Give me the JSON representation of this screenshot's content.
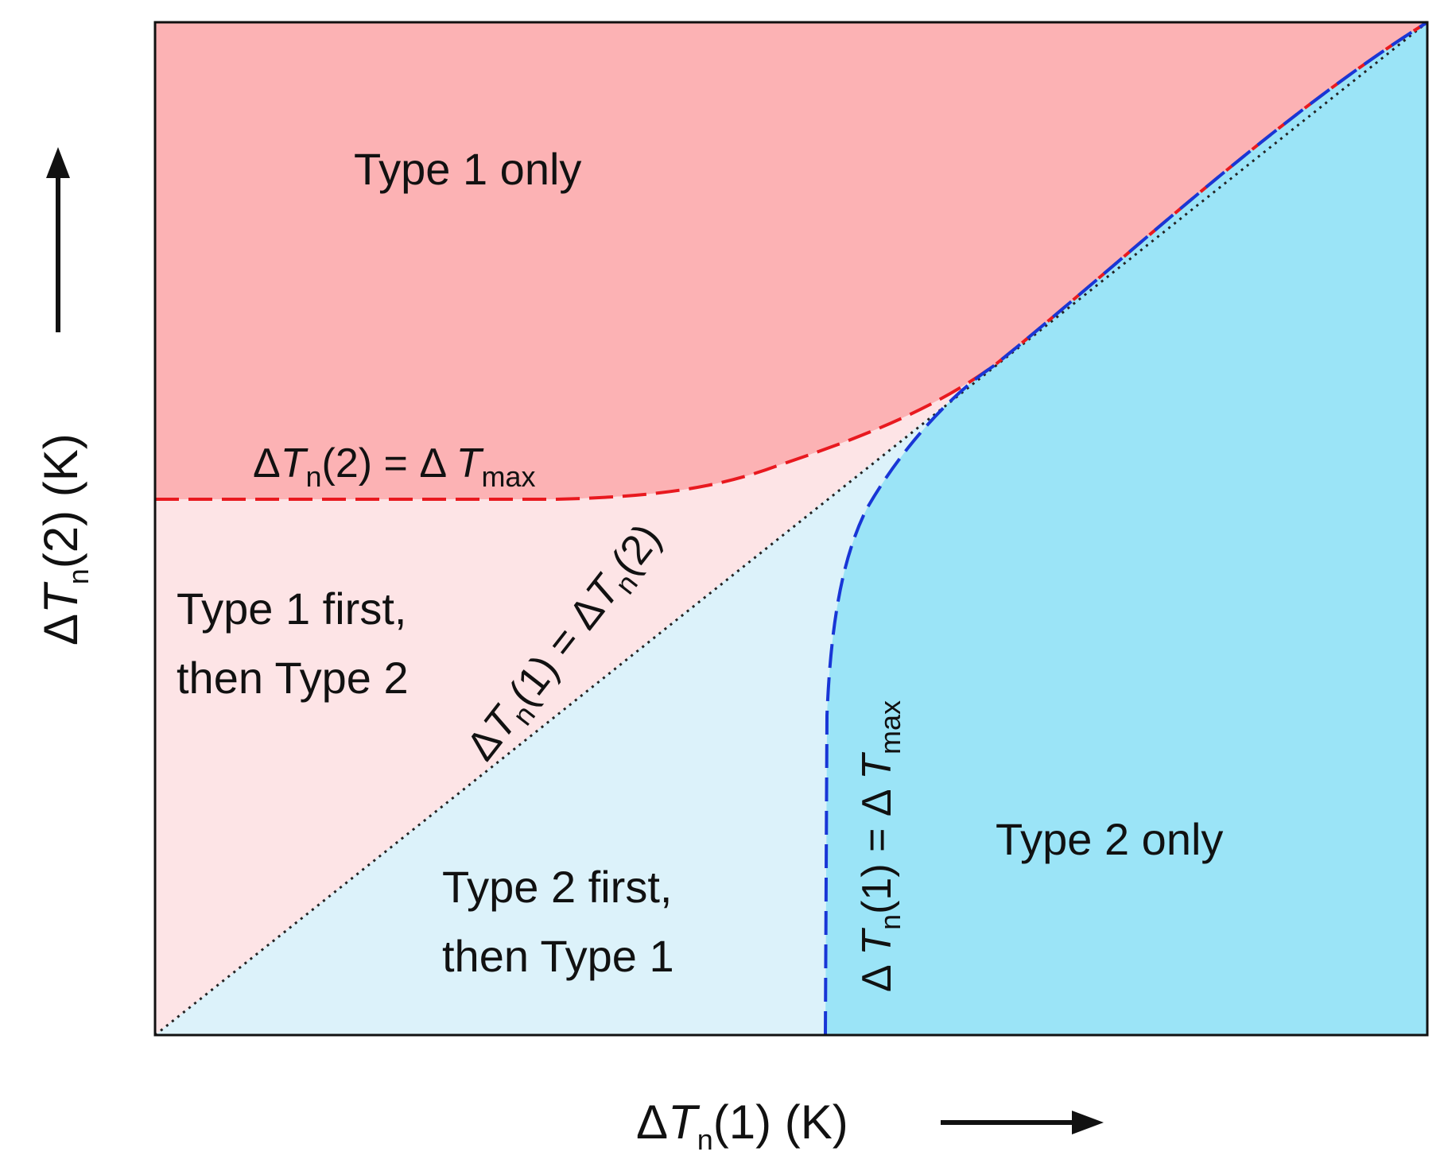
{
  "colors": {
    "type1_only": "#fcb2b4",
    "type1_first": "#fde4e6",
    "type2_first": "#dcf2fa",
    "type2_only": "#9be4f7",
    "red_boundary": "#e8191f",
    "blue_boundary": "#1836d6",
    "diagonal": "#222222",
    "frame": "#111111"
  },
  "axes": {
    "x": {
      "delta": "Δ",
      "T": "T",
      "sub": "n",
      "rest": "(1) (K)",
      "arrow": "right-arrow"
    },
    "y": {
      "delta": "Δ",
      "T": "T",
      "sub": "n",
      "rest": "(2) (K)",
      "arrow": "up-arrow"
    }
  },
  "regions": {
    "type1_only": "Type 1 only",
    "type1_first_line1": "Type 1 first,",
    "type1_first_line2": "then Type 2",
    "type2_first_line1": "Type 2 first,",
    "type2_first_line2": "then Type 1",
    "type2_only": "Type 2 only"
  },
  "boundaries": {
    "red": {
      "a": "Δ",
      "b": "T",
      "c": "n",
      "d": "(2) = Δ ",
      "e": "T",
      "f": "max",
      "style": "dashed"
    },
    "diagonal": {
      "a": "Δ",
      "b": "T",
      "c": "n",
      "d": "(1) = Δ",
      "e": "T",
      "f": "n",
      "g": "(2)",
      "style": "dotted"
    },
    "blue": {
      "a": "Δ ",
      "b": "T",
      "c": "n",
      "d": "(1) = Δ ",
      "e": "T",
      "f": "max",
      "style": "dashed"
    }
  }
}
